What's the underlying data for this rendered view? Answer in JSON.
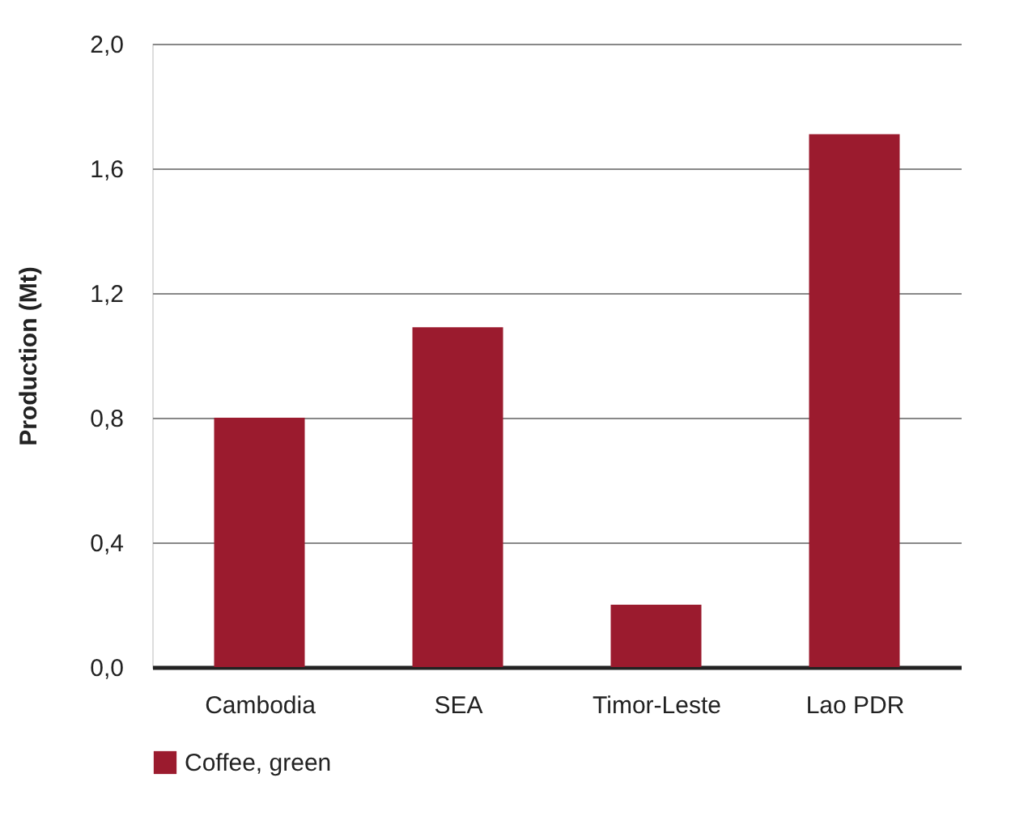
{
  "chart_data": {
    "type": "bar",
    "ylabel": "Production (Mt)",
    "categories": [
      "Cambodia",
      "SEA",
      "Timor-Leste",
      "Lao PDR"
    ],
    "series": [
      {
        "name": "Coffee, green",
        "color": "#9b1b2e",
        "values": [
          0.8,
          1.09,
          0.2,
          1.71
        ]
      }
    ],
    "ylim": [
      0,
      2.0
    ],
    "yticks": [
      {
        "value": 0,
        "label": "0,0"
      },
      {
        "value": 0.4,
        "label": "0,4"
      },
      {
        "value": 0.8,
        "label": "0,8"
      },
      {
        "value": 1.2,
        "label": "1,2"
      },
      {
        "value": 1.6,
        "label": "1,6"
      },
      {
        "value": 2.0,
        "label": "2,0"
      }
    ],
    "grid": "y",
    "legend": "bottom"
  }
}
